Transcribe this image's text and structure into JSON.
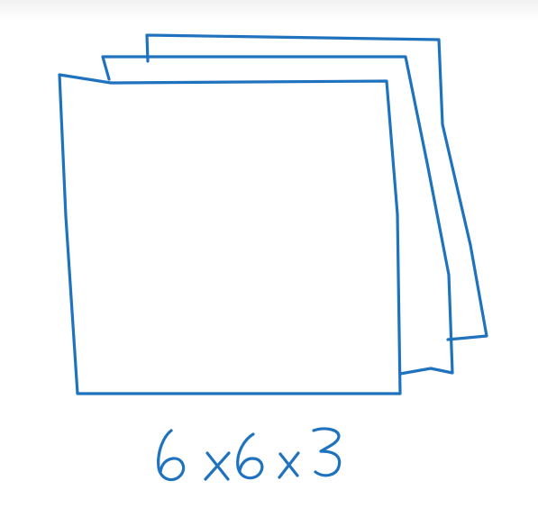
{
  "diagram": {
    "caption": "6 x 6 x 3",
    "stroke_color": "#1f72be",
    "background_color": "#ffffff"
  }
}
